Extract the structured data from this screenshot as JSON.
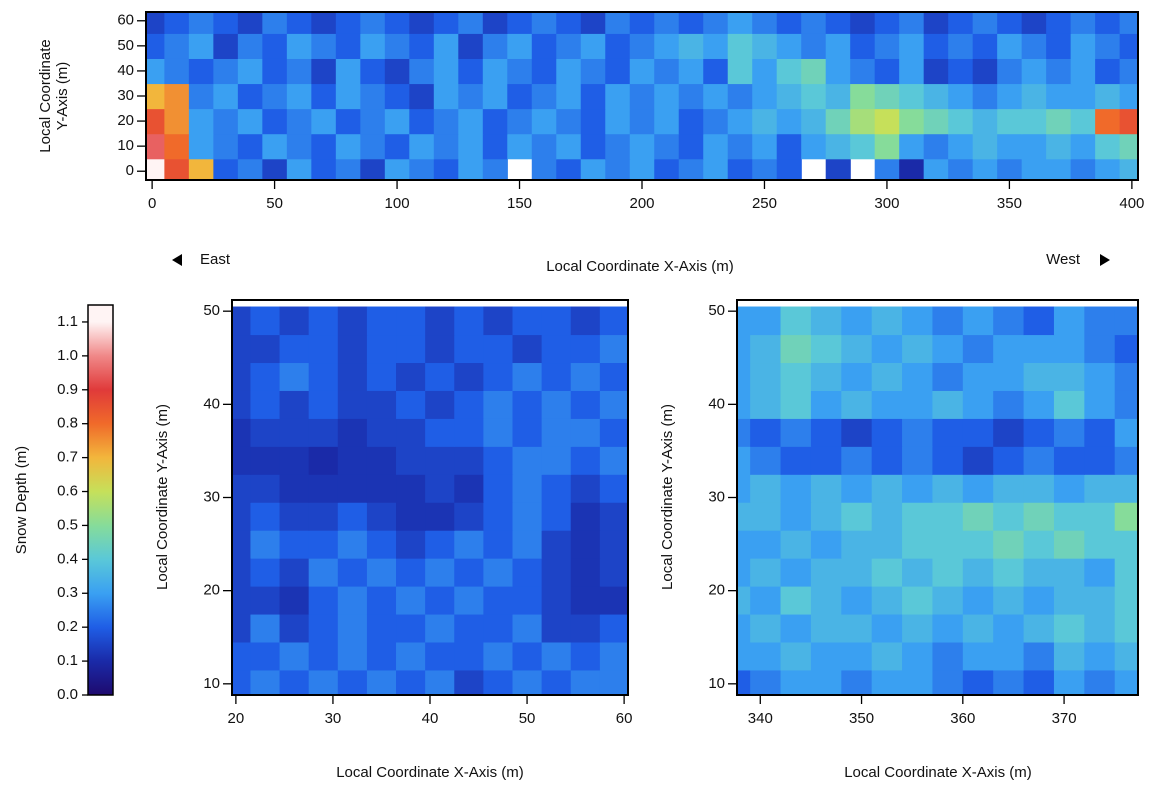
{
  "chart_data": [
    {
      "type": "heatmap",
      "xlabel": "Local Coordinate X-Axis (m)",
      "ylabel": [
        "Local Coordinate",
        "Y-Axis (m)"
      ],
      "annotations": [
        "East",
        "West"
      ],
      "xlim": [
        -2.5,
        402.5
      ],
      "ylim": [
        -3.5,
        63.5
      ],
      "xticks": [
        0,
        50,
        100,
        150,
        200,
        250,
        300,
        350,
        400
      ],
      "yticks": [
        0,
        10,
        20,
        30,
        40,
        50,
        60
      ],
      "x": [
        0,
        10,
        20,
        30,
        40,
        50,
        60,
        70,
        80,
        90,
        100,
        110,
        120,
        130,
        140,
        150,
        160,
        170,
        180,
        190,
        200,
        210,
        220,
        230,
        240,
        250,
        260,
        270,
        280,
        290,
        300,
        310,
        320,
        330,
        340,
        350,
        360,
        370,
        380,
        390,
        400
      ],
      "y": [
        0,
        10,
        20,
        30,
        40,
        50,
        60
      ],
      "z": [
        [
          1.1,
          0.85,
          0.7,
          0.2,
          0.25,
          0.15,
          0.3,
          0.2,
          0.25,
          0.15,
          0.3,
          0.25,
          0.2,
          0.3,
          0.25,
          null,
          0.25,
          0.2,
          0.3,
          0.25,
          0.3,
          0.2,
          0.25,
          0.3,
          0.2,
          0.25,
          0.2,
          null,
          0.15,
          null,
          0.25,
          0.1,
          0.3,
          0.25,
          0.3,
          0.25,
          0.3,
          0.3,
          0.25,
          0.3,
          0.35
        ],
        [
          0.95,
          0.8,
          0.3,
          0.25,
          0.2,
          0.3,
          0.25,
          0.2,
          0.3,
          0.25,
          0.2,
          0.3,
          0.25,
          0.3,
          0.2,
          0.3,
          0.25,
          0.3,
          0.2,
          0.25,
          0.3,
          0.25,
          0.2,
          0.3,
          0.25,
          0.3,
          0.2,
          0.3,
          0.35,
          0.4,
          0.5,
          0.3,
          0.25,
          0.3,
          0.35,
          0.3,
          0.3,
          0.35,
          0.3,
          0.4,
          0.45
        ],
        [
          0.85,
          0.75,
          0.3,
          0.25,
          0.3,
          0.2,
          0.25,
          0.3,
          0.2,
          0.25,
          0.3,
          0.2,
          0.25,
          0.3,
          0.2,
          0.25,
          0.3,
          0.25,
          0.2,
          0.3,
          0.25,
          0.3,
          0.2,
          0.25,
          0.3,
          0.35,
          0.3,
          0.35,
          0.45,
          0.55,
          0.6,
          0.5,
          0.45,
          0.4,
          0.35,
          0.4,
          0.4,
          0.45,
          0.4,
          0.8,
          0.85
        ],
        [
          0.7,
          0.75,
          0.25,
          0.3,
          0.2,
          0.25,
          0.3,
          0.2,
          0.3,
          0.25,
          0.2,
          0.15,
          0.3,
          0.25,
          0.3,
          0.2,
          0.25,
          0.3,
          0.2,
          0.3,
          0.25,
          0.3,
          0.25,
          0.3,
          0.25,
          0.3,
          0.35,
          0.4,
          0.35,
          0.5,
          0.45,
          0.4,
          0.35,
          0.3,
          0.25,
          0.3,
          0.35,
          0.3,
          0.3,
          0.35,
          0.3
        ],
        [
          0.3,
          0.25,
          0.2,
          0.25,
          0.3,
          0.2,
          0.25,
          0.15,
          0.3,
          0.2,
          0.15,
          0.25,
          0.3,
          0.2,
          0.3,
          0.25,
          0.2,
          0.3,
          0.25,
          0.2,
          0.3,
          0.25,
          0.3,
          0.2,
          0.4,
          0.3,
          0.4,
          0.45,
          0.3,
          0.25,
          0.2,
          0.3,
          0.15,
          0.2,
          0.15,
          0.25,
          0.3,
          0.25,
          0.3,
          0.2,
          0.25
        ],
        [
          0.2,
          0.25,
          0.3,
          0.15,
          0.25,
          0.2,
          0.3,
          0.25,
          0.2,
          0.3,
          0.25,
          0.2,
          0.3,
          0.15,
          0.25,
          0.3,
          0.2,
          0.25,
          0.3,
          0.2,
          0.25,
          0.3,
          0.35,
          0.3,
          0.4,
          0.35,
          0.3,
          0.25,
          0.3,
          0.2,
          0.25,
          0.3,
          0.2,
          0.25,
          0.2,
          0.3,
          0.25,
          0.2,
          0.3,
          0.25,
          0.2
        ],
        [
          0.15,
          0.2,
          0.25,
          0.2,
          0.15,
          0.25,
          0.2,
          0.15,
          0.2,
          0.25,
          0.2,
          0.15,
          0.2,
          0.25,
          0.15,
          0.2,
          0.25,
          0.2,
          0.15,
          0.25,
          0.2,
          0.25,
          0.2,
          0.25,
          0.3,
          0.25,
          0.2,
          0.25,
          0.2,
          0.15,
          0.2,
          0.25,
          0.15,
          0.2,
          0.25,
          0.2,
          0.15,
          0.2,
          0.25,
          0.2,
          0.25
        ]
      ]
    },
    {
      "type": "heatmap",
      "xlabel": "Local Coordinate X-Axis (m)",
      "ylabel": "Local Coordinate Y-Axis (m)",
      "xlim": [
        19.6,
        60.4
      ],
      "ylim": [
        8.8,
        51.2
      ],
      "xticks": [
        20,
        30,
        40,
        50,
        60
      ],
      "yticks": [
        10,
        20,
        30,
        40,
        50
      ],
      "x": [
        20,
        23,
        26,
        29,
        32,
        35,
        38,
        41,
        44,
        47,
        50,
        53,
        56,
        59
      ],
      "y": [
        10,
        13,
        16,
        19,
        22,
        25,
        28,
        31,
        34,
        37,
        40,
        43,
        46,
        49
      ],
      "z": [
        [
          0.2,
          0.25,
          0.2,
          0.25,
          0.2,
          0.25,
          0.2,
          0.25,
          0.15,
          0.2,
          0.25,
          0.2,
          0.25,
          0.25
        ],
        [
          0.2,
          0.2,
          0.25,
          0.2,
          0.25,
          0.2,
          0.25,
          0.2,
          0.2,
          0.25,
          0.2,
          0.25,
          0.2,
          0.25
        ],
        [
          0.15,
          0.25,
          0.15,
          0.2,
          0.25,
          0.2,
          0.2,
          0.25,
          0.2,
          0.2,
          0.25,
          0.15,
          0.15,
          0.2
        ],
        [
          0.15,
          0.15,
          0.12,
          0.2,
          0.25,
          0.2,
          0.25,
          0.2,
          0.25,
          0.2,
          0.2,
          0.15,
          0.12,
          0.12
        ],
        [
          0.15,
          0.2,
          0.15,
          0.25,
          0.2,
          0.25,
          0.2,
          0.25,
          0.2,
          0.25,
          0.2,
          0.15,
          0.12,
          0.15
        ],
        [
          0.15,
          0.25,
          0.2,
          0.2,
          0.25,
          0.2,
          0.15,
          0.2,
          0.25,
          0.2,
          0.25,
          0.15,
          0.12,
          0.15
        ],
        [
          0.15,
          0.2,
          0.15,
          0.15,
          0.2,
          0.15,
          0.12,
          0.12,
          0.15,
          0.2,
          0.25,
          0.2,
          0.12,
          0.15
        ],
        [
          0.15,
          0.15,
          0.12,
          0.12,
          0.12,
          0.12,
          0.12,
          0.15,
          0.12,
          0.2,
          0.25,
          0.2,
          0.15,
          0.2
        ],
        [
          0.12,
          0.12,
          0.12,
          0.1,
          0.12,
          0.12,
          0.15,
          0.15,
          0.15,
          0.2,
          0.25,
          0.25,
          0.2,
          0.25
        ],
        [
          0.12,
          0.15,
          0.15,
          0.15,
          0.12,
          0.15,
          0.15,
          0.2,
          0.2,
          0.25,
          0.2,
          0.25,
          0.25,
          0.2
        ],
        [
          0.15,
          0.2,
          0.15,
          0.2,
          0.15,
          0.15,
          0.2,
          0.15,
          0.2,
          0.25,
          0.2,
          0.25,
          0.2,
          0.25
        ],
        [
          0.15,
          0.2,
          0.25,
          0.2,
          0.15,
          0.2,
          0.15,
          0.2,
          0.15,
          0.2,
          0.25,
          0.2,
          0.25,
          0.2
        ],
        [
          0.15,
          0.15,
          0.2,
          0.2,
          0.15,
          0.2,
          0.2,
          0.15,
          0.2,
          0.2,
          0.15,
          0.2,
          0.2,
          0.25
        ],
        [
          0.15,
          0.2,
          0.15,
          0.2,
          0.15,
          0.2,
          0.2,
          0.15,
          0.2,
          0.15,
          0.2,
          0.2,
          0.15,
          0.2
        ]
      ]
    },
    {
      "type": "heatmap",
      "xlabel": "Local Coordinate X-Axis (m)",
      "ylabel": "Local Coordinate Y-Axis (m)",
      "xlim": [
        337.7,
        377.3
      ],
      "ylim": [
        8.8,
        51.2
      ],
      "xticks": [
        340,
        350,
        360,
        370
      ],
      "yticks": [
        10,
        20,
        30,
        40,
        50
      ],
      "x": [
        337.5,
        340.5,
        343.5,
        346.5,
        349.5,
        352.5,
        355.5,
        358.5,
        361.5,
        364.5,
        367.5,
        370.5,
        373.5,
        376.5
      ],
      "y": [
        10,
        13,
        16,
        19,
        22,
        25,
        28,
        31,
        34,
        37,
        40,
        43,
        46,
        49
      ],
      "z": [
        [
          0.2,
          0.25,
          0.3,
          0.3,
          0.25,
          0.3,
          0.3,
          0.25,
          0.2,
          0.25,
          0.2,
          0.3,
          0.25,
          0.3
        ],
        [
          0.3,
          0.3,
          0.35,
          0.3,
          0.3,
          0.35,
          0.3,
          0.25,
          0.3,
          0.3,
          0.25,
          0.35,
          0.3,
          0.35
        ],
        [
          0.3,
          0.35,
          0.3,
          0.35,
          0.35,
          0.3,
          0.35,
          0.3,
          0.35,
          0.3,
          0.35,
          0.4,
          0.35,
          0.4
        ],
        [
          0.35,
          0.3,
          0.4,
          0.35,
          0.3,
          0.35,
          0.4,
          0.35,
          0.3,
          0.35,
          0.3,
          0.35,
          0.35,
          0.4
        ],
        [
          0.3,
          0.35,
          0.3,
          0.35,
          0.35,
          0.4,
          0.35,
          0.4,
          0.35,
          0.4,
          0.35,
          0.35,
          0.3,
          0.4
        ],
        [
          0.3,
          0.3,
          0.35,
          0.3,
          0.35,
          0.35,
          0.4,
          0.4,
          0.4,
          0.45,
          0.4,
          0.45,
          0.4,
          0.4
        ],
        [
          0.35,
          0.35,
          0.3,
          0.35,
          0.4,
          0.35,
          0.4,
          0.4,
          0.45,
          0.4,
          0.45,
          0.4,
          0.4,
          0.5
        ],
        [
          0.3,
          0.35,
          0.3,
          0.35,
          0.3,
          0.35,
          0.3,
          0.35,
          0.3,
          0.35,
          0.35,
          0.3,
          0.35,
          0.35
        ],
        [
          0.3,
          0.25,
          0.2,
          0.2,
          0.25,
          0.2,
          0.25,
          0.2,
          0.15,
          0.2,
          0.25,
          0.2,
          0.2,
          0.25
        ],
        [
          0.25,
          0.2,
          0.25,
          0.2,
          0.15,
          0.2,
          0.25,
          0.2,
          0.2,
          0.15,
          0.2,
          0.25,
          0.2,
          0.3
        ],
        [
          0.3,
          0.35,
          0.4,
          0.3,
          0.35,
          0.3,
          0.3,
          0.35,
          0.3,
          0.25,
          0.3,
          0.4,
          0.3,
          0.25
        ],
        [
          0.3,
          0.35,
          0.4,
          0.35,
          0.3,
          0.35,
          0.3,
          0.25,
          0.3,
          0.3,
          0.35,
          0.35,
          0.3,
          0.25
        ],
        [
          0.3,
          0.35,
          0.45,
          0.4,
          0.35,
          0.3,
          0.35,
          0.3,
          0.25,
          0.3,
          0.3,
          0.3,
          0.25,
          0.2
        ],
        [
          0.3,
          0.3,
          0.4,
          0.35,
          0.3,
          0.35,
          0.3,
          0.25,
          0.3,
          0.25,
          0.2,
          0.3,
          0.25,
          0.25
        ]
      ]
    }
  ],
  "colorbar": {
    "label": "Snow Depth (m)",
    "zlim": [
      0,
      1.15
    ],
    "zticks": [
      {
        "value": 0,
        "label": "0.0"
      },
      0.1,
      0.2,
      0.3,
      0.4,
      0.5,
      0.6,
      0.7,
      0.8,
      0.9,
      {
        "value": 1,
        "label": "1.0"
      },
      1.1
    ],
    "colors": [
      "#1e0a6e",
      "#1a2aa8",
      "#1f5ee6",
      "#3aa0f2",
      "#5ac8d8",
      "#86dc9a",
      "#c6e05a",
      "#f2b63c",
      "#f06a2a",
      "#e03a3a",
      "#f08888",
      "#fff4f4"
    ]
  }
}
